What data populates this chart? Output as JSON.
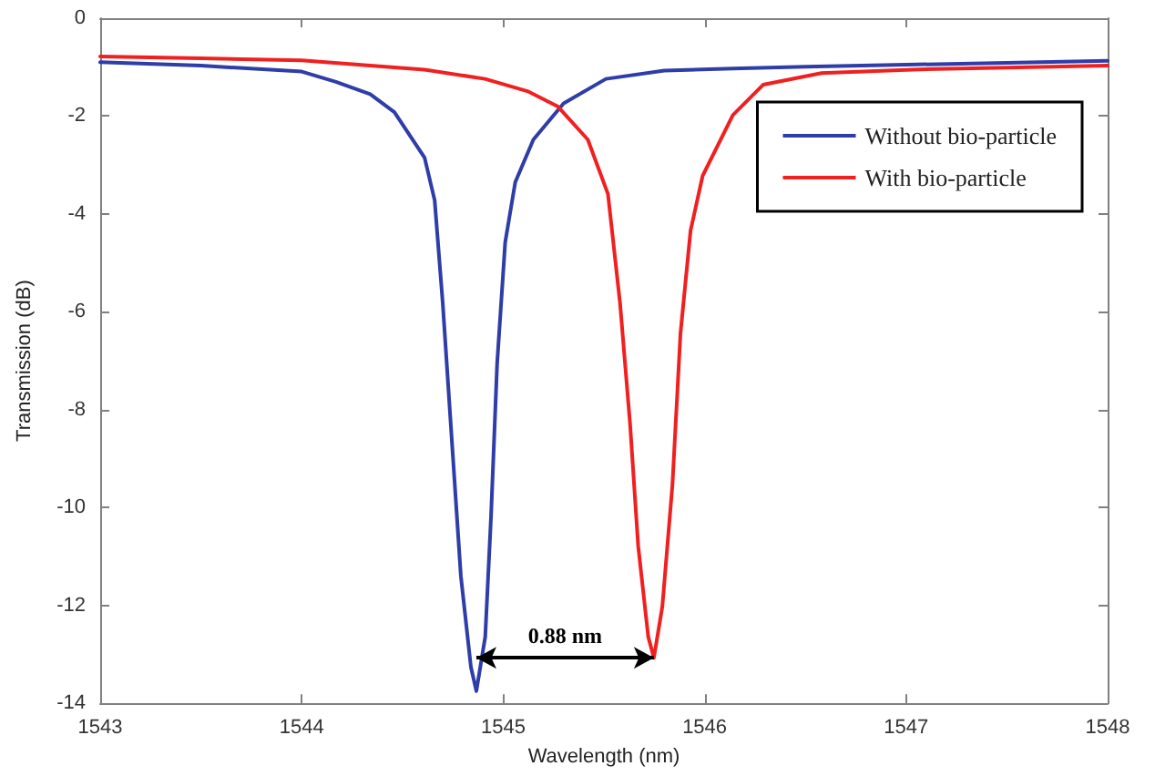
{
  "chart_data": {
    "type": "line",
    "xlabel": "Wavelength (nm)",
    "ylabel": "Transmission (dB)",
    "xlim": [
      1543,
      1548
    ],
    "xticks": [
      1543,
      1544,
      1545,
      1546,
      1547,
      1548
    ],
    "ylim": [
      -14,
      0
    ],
    "yticks": [
      -14,
      -12,
      -10,
      -8,
      -6,
      -4,
      -2,
      0
    ],
    "grid": false,
    "legend": "top right",
    "marker": "none",
    "line_style": "solid",
    "annotations": [
      "0.88 nm"
    ],
    "series": [
      {
        "name": "Without bio-particle",
        "color": "#2e3da8",
        "x": [
          1543,
          1543.5,
          1544,
          1544.17,
          1544.34,
          1544.46,
          1544.61,
          1544.66,
          1544.7,
          1544.75,
          1544.79,
          1544.84,
          1544.867,
          1544.911,
          1544.94,
          1544.97,
          1545.01,
          1545.06,
          1545.15,
          1545.3,
          1545.51,
          1545.8,
          1546.14,
          1546.5,
          1547,
          1547.5,
          1548
        ],
        "values": [
          -0.9,
          -0.97,
          -1.09,
          -1.3,
          -1.55,
          -1.92,
          -2.85,
          -3.72,
          -5.82,
          -8.92,
          -11.4,
          -13.26,
          -13.75,
          -12.64,
          -10.16,
          -7.06,
          -4.58,
          -3.35,
          -2.48,
          -1.74,
          -1.24,
          -1.07,
          -1.03,
          -0.99,
          -0.95,
          -0.91,
          -0.87
        ]
      },
      {
        "name": "With bio-particle",
        "color": "#f02020",
        "x": [
          1543,
          1543.5,
          1544,
          1544.34,
          1544.61,
          1544.91,
          1545.12,
          1545.27,
          1545.42,
          1545.52,
          1545.58,
          1545.63,
          1545.67,
          1545.72,
          1545.748,
          1545.79,
          1545.84,
          1545.88,
          1545.93,
          1545.99,
          1546.14,
          1546.29,
          1546.58,
          1547.03,
          1547.5,
          1548
        ],
        "values": [
          -0.78,
          -0.82,
          -0.86,
          -0.97,
          -1.05,
          -1.24,
          -1.49,
          -1.8,
          -2.48,
          -3.59,
          -5.82,
          -8.3,
          -10.78,
          -12.64,
          -13.07,
          -12.02,
          -9.54,
          -6.44,
          -4.34,
          -3.22,
          -1.98,
          -1.36,
          -1.12,
          -1.05,
          -1.01,
          -0.97
        ]
      }
    ]
  }
}
